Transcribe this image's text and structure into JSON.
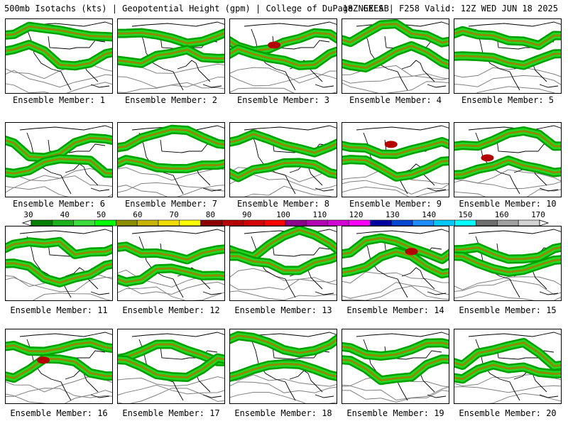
{
  "header": {
    "left_title": "500mb Isotachs (kts) | Geopotential Height (gpm) | College of DuPage NEXLAB",
    "right_title": "18Z GEFS | F258 Valid: 12Z WED JUN 18 2025"
  },
  "member_label_prefix": "Ensemble Member:",
  "members": [
    "1",
    "2",
    "3",
    "4",
    "5",
    "6",
    "7",
    "8",
    "9",
    "10",
    "11",
    "12",
    "13",
    "14",
    "15",
    "16",
    "17",
    "18",
    "19",
    "20"
  ],
  "colorbar": {
    "ticks": [
      "30",
      "40",
      "50",
      "60",
      "70",
      "80",
      "90",
      "100",
      "110",
      "120",
      "130",
      "140",
      "150",
      "160",
      "170"
    ],
    "colors": [
      "#007f00",
      "#1cb01c",
      "#3cdc3c",
      "#00ff00",
      "#8c8c00",
      "#c8b400",
      "#f0dc00",
      "#ffff00",
      "#8c0000",
      "#b40000",
      "#d20000",
      "#ff0000",
      "#8c008c",
      "#b400b4",
      "#d200d2",
      "#ff00ff",
      "#0000a0",
      "#0046d2",
      "#1e8cff",
      "#00c8ff",
      "#00ffff",
      "#6e6e6e",
      "#a0a0a0",
      "#d2d2d2"
    ]
  },
  "colors": {
    "jet_outer": "#00a000",
    "jet_mid": "#22d822",
    "jet_core": "#8c8c00",
    "jet_max": "#b40000",
    "height_contour": "#808080",
    "coastline": "#000000"
  }
}
